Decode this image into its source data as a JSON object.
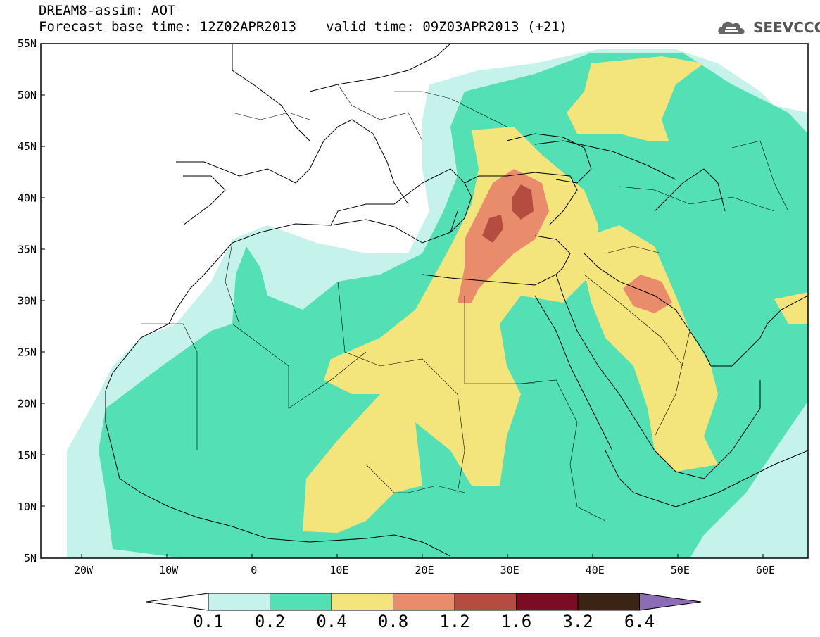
{
  "header": {
    "line1": "DREAM8-assim: AOT",
    "forecast": "Forecast base time: 12Z02APR2013",
    "valid": "valid time: 09Z03APR2013 (+21)"
  },
  "logo": {
    "text": "SEEVCCC",
    "icon": "cloud-logo-icon"
  },
  "map": {
    "lat_labels": [
      "55N",
      "50N",
      "45N",
      "40N",
      "35N",
      "30N",
      "25N",
      "20N",
      "15N",
      "10N",
      "5N"
    ],
    "lon_labels": [
      "20W",
      "10W",
      "0",
      "10E",
      "20E",
      "30E",
      "40E",
      "50E",
      "60E"
    ],
    "lat_range": [
      5,
      55
    ],
    "lon_range": [
      -25,
      65
    ]
  },
  "colorbar": {
    "labels": [
      "0.1",
      "0.2",
      "0.4",
      "0.8",
      "1.2",
      "1.6",
      "3.2",
      "6.4"
    ],
    "colors": [
      "#c6f2ec",
      "#52e0b4",
      "#f4e47c",
      "#e88c6c",
      "#b44c40",
      "#7c0c24",
      "#3c2414",
      "#8c6cb4"
    ],
    "under_color": "#ffffff"
  }
}
